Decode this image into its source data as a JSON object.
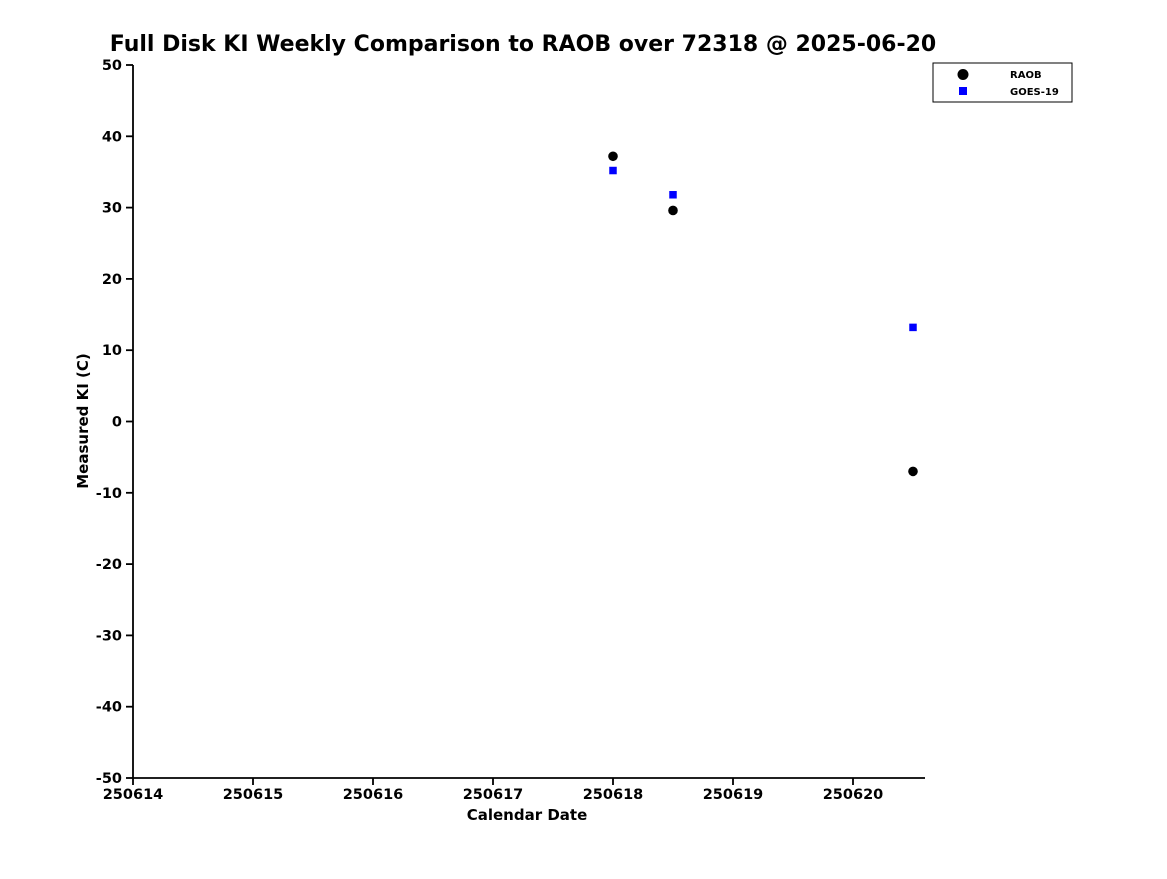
{
  "chart_data": {
    "type": "scatter",
    "title": "Full Disk KI Weekly Comparison to RAOB over 72318 @ 2025-06-20",
    "xlabel": "Calendar Date",
    "ylabel": "Measured KI (C)",
    "xlim": [
      250614,
      250620.6
    ],
    "ylim": [
      -50,
      50
    ],
    "xticks": [
      250614,
      250615,
      250616,
      250617,
      250618,
      250619,
      250620
    ],
    "yticks": [
      -50,
      -40,
      -30,
      -20,
      -10,
      0,
      10,
      20,
      30,
      40,
      50
    ],
    "grid": false,
    "legend_position": "top-right",
    "series": [
      {
        "name": "RAOB",
        "marker": "circle",
        "color": "#000000",
        "points": [
          [
            250618.0,
            37.2
          ],
          [
            250618.5,
            29.6
          ],
          [
            250620.5,
            -7.0
          ]
        ]
      },
      {
        "name": "GOES-19",
        "marker": "square",
        "color": "#0000ff",
        "points": [
          [
            250618.0,
            35.2
          ],
          [
            250618.5,
            31.8
          ],
          [
            250620.5,
            13.2
          ]
        ]
      }
    ]
  }
}
